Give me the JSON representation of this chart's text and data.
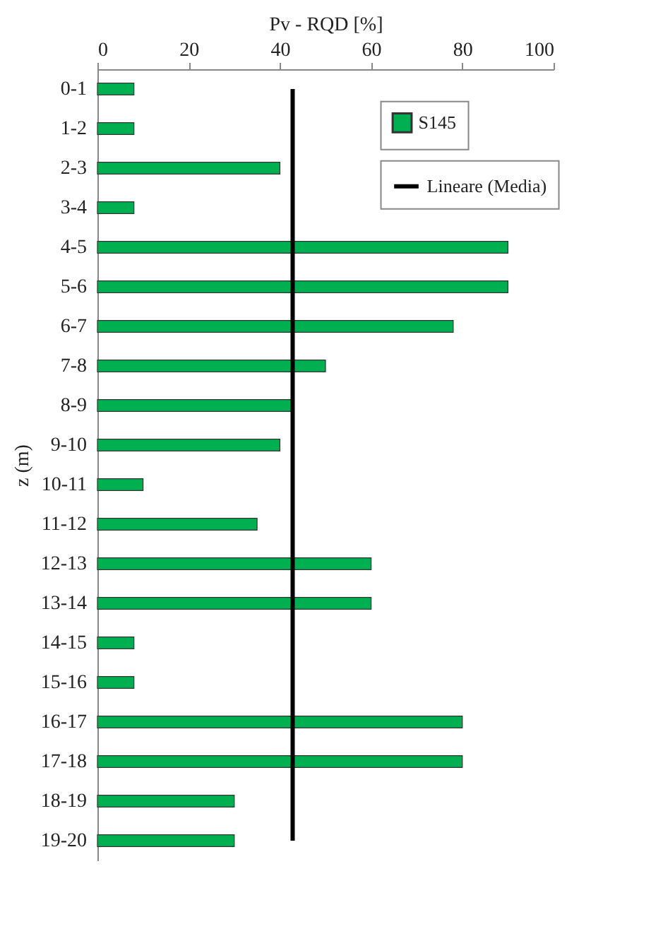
{
  "chart_data": {
    "type": "bar",
    "orientation": "horizontal",
    "xlabel": "Pv - RQD [%]",
    "ylabel": "z (m)",
    "categories": [
      "0-1",
      "1-2",
      "2-3",
      "3-4",
      "4-5",
      "5-6",
      "6-7",
      "7-8",
      "8-9",
      "9-10",
      "10-11",
      "11-12",
      "12-13",
      "13-14",
      "14-15",
      "15-16",
      "16-17",
      "17-18",
      "18-19",
      "19-20"
    ],
    "series": [
      {
        "name": "S145",
        "color": "#00b050",
        "values": [
          8,
          8,
          40,
          8,
          90,
          90,
          78,
          50,
          42.5,
          40,
          10,
          35,
          60,
          60,
          8,
          8,
          80,
          80,
          30,
          30
        ]
      },
      {
        "name": "Lineare (Media)",
        "type": "line",
        "color": "#000000",
        "values": [
          42.8,
          42.8,
          42.8,
          42.8,
          42.8,
          42.8,
          42.8,
          42.8,
          42.8,
          42.8,
          42.8,
          42.8,
          42.8,
          42.8,
          42.8,
          42.8,
          42.8,
          42.8,
          42.8,
          42.8
        ]
      }
    ],
    "xlim": [
      0,
      100
    ],
    "xticks": [
      0,
      20,
      40,
      60,
      80,
      100
    ],
    "legend": "top right",
    "grid": false
  }
}
